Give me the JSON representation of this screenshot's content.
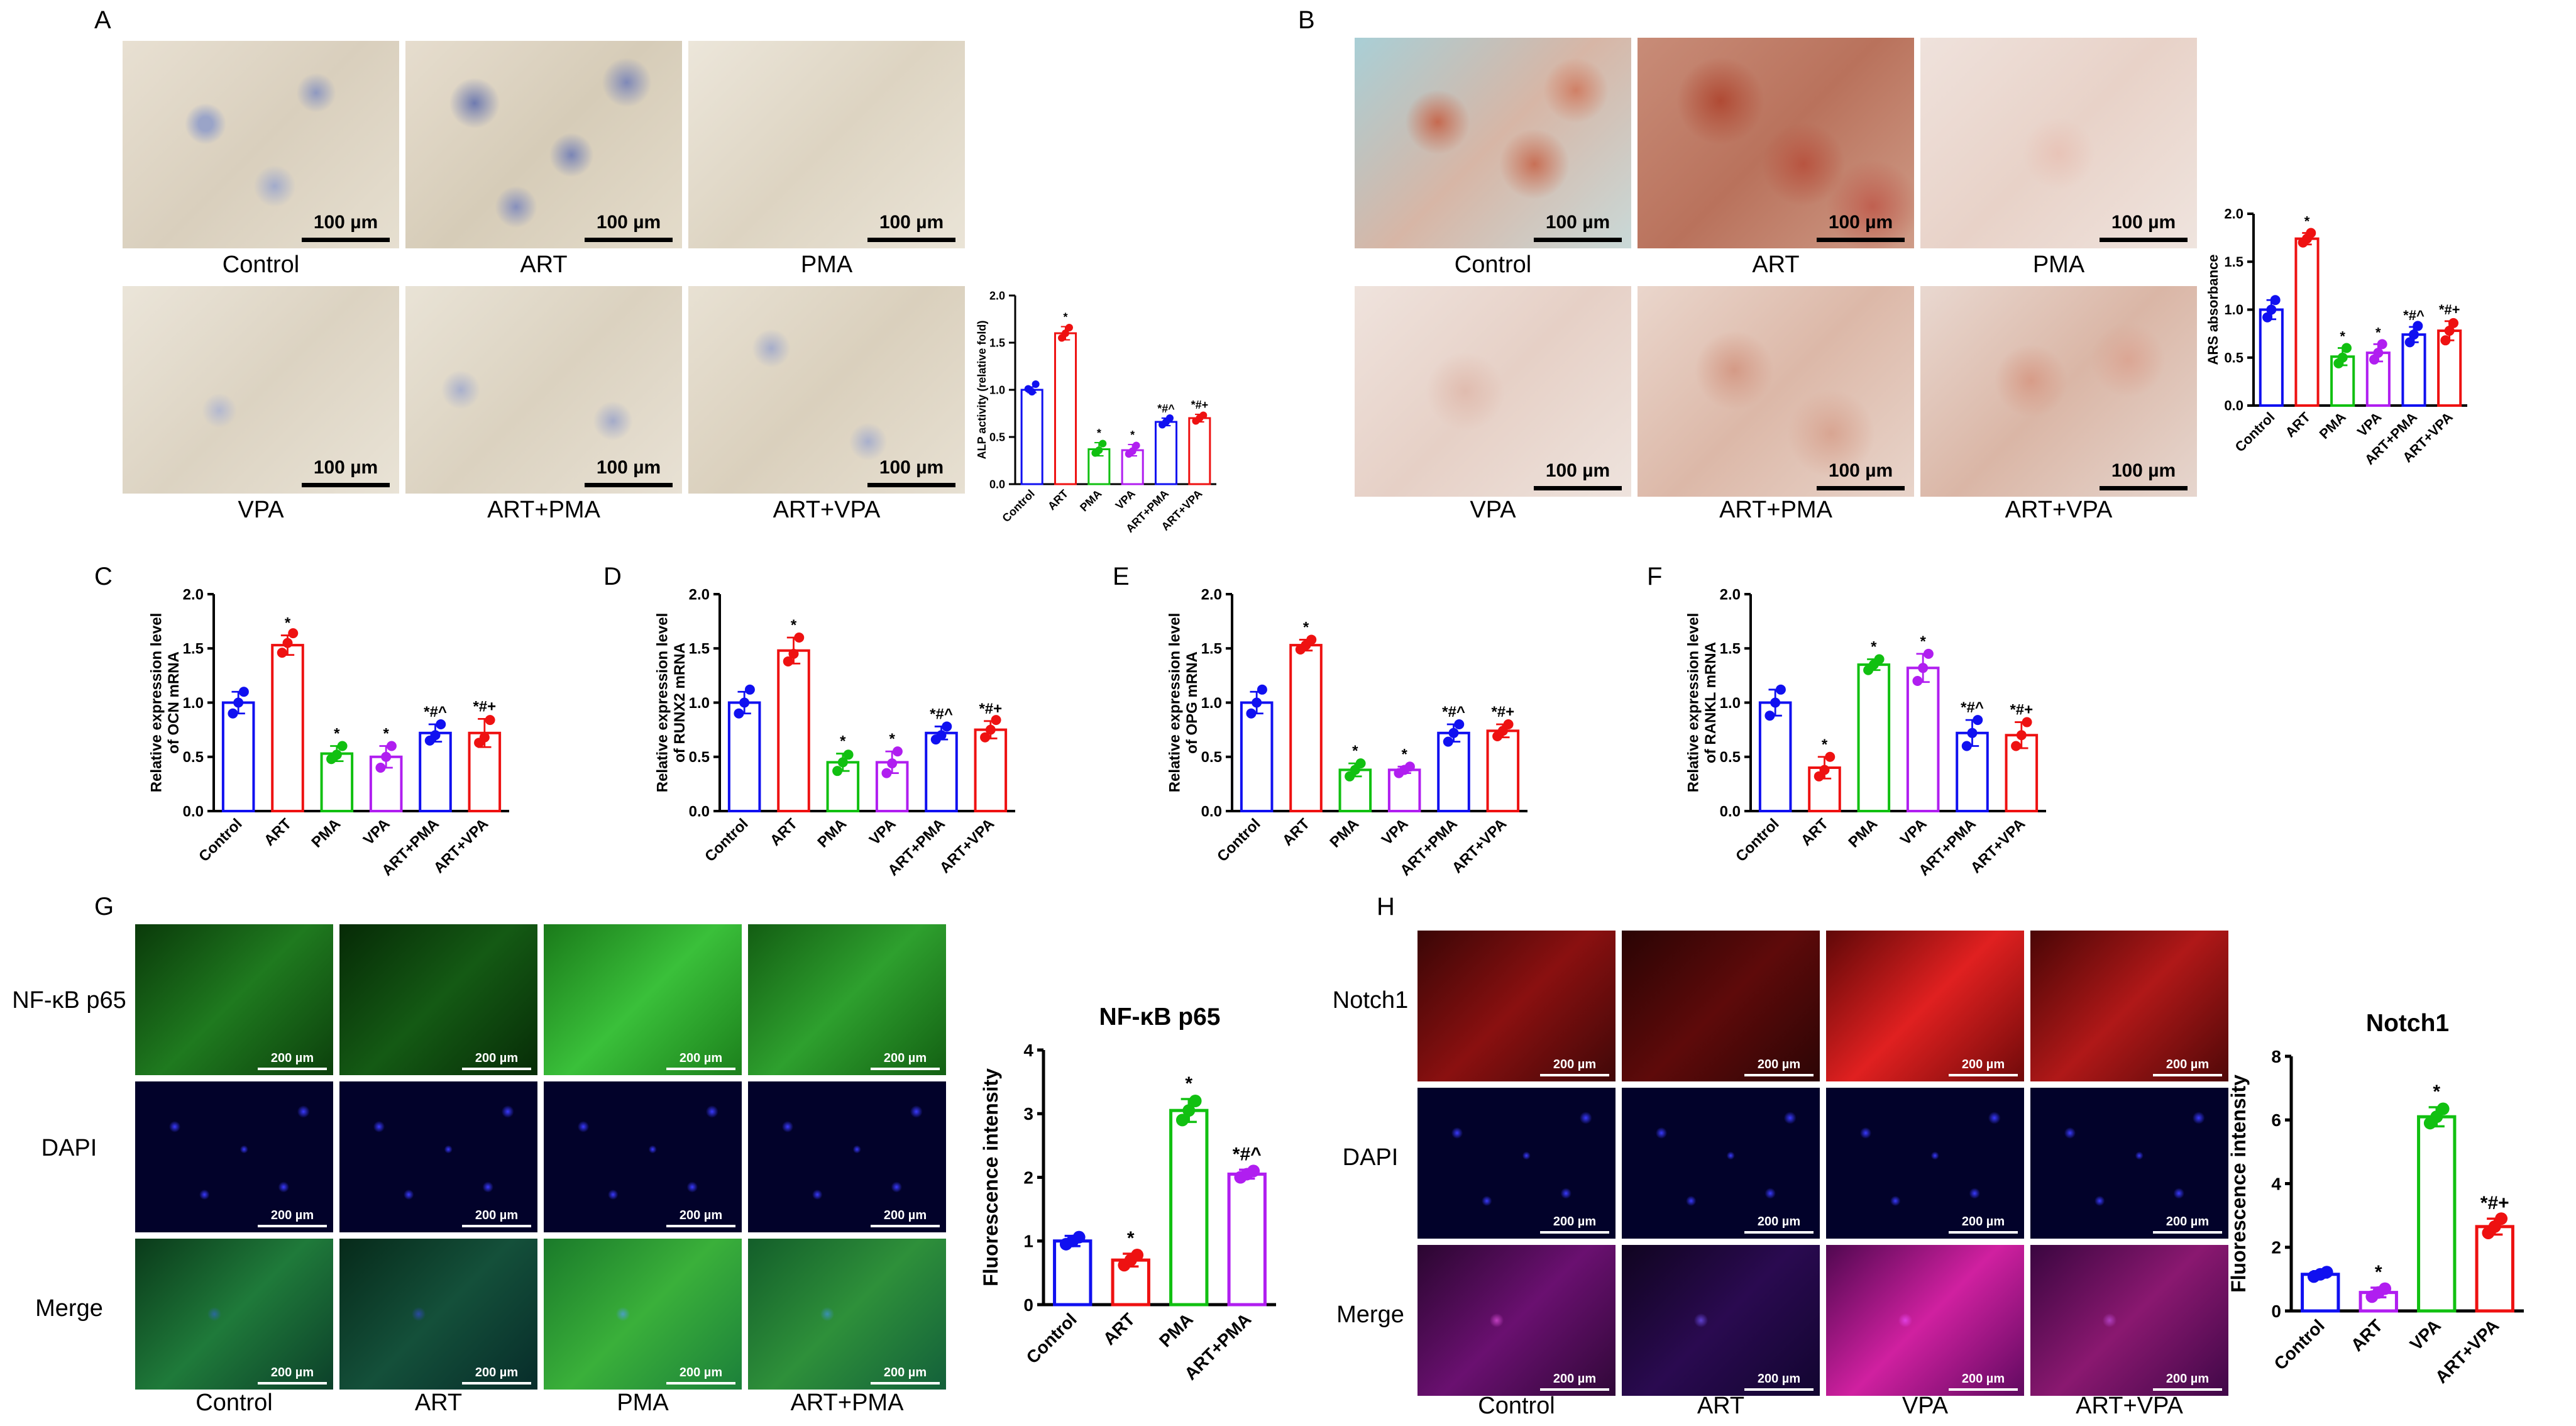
{
  "panels": {
    "A": {
      "letter": "A",
      "captions": [
        "Control",
        "ART",
        "PMA",
        "VPA",
        "ART+PMA",
        "ART+VPA"
      ],
      "scale_bar": "100 µm"
    },
    "B": {
      "letter": "B",
      "captions": [
        "Control",
        "ART",
        "PMA",
        "VPA",
        "ART+PMA",
        "ART+VPA"
      ],
      "scale_bar": "100 µm"
    },
    "C": {
      "letter": "C"
    },
    "D": {
      "letter": "D"
    },
    "E": {
      "letter": "E"
    },
    "F": {
      "letter": "F"
    },
    "G": {
      "letter": "G",
      "row_labels": [
        "NF-κB p65",
        "DAPI",
        "Merge"
      ],
      "col_labels": [
        "Control",
        "ART",
        "PMA",
        "ART+PMA"
      ],
      "scale_bar": "200 µm"
    },
    "H": {
      "letter": "H",
      "row_labels": [
        "Notch1",
        "DAPI",
        "Merge"
      ],
      "col_labels": [
        "Control",
        "ART",
        "VPA",
        "ART+VPA"
      ],
      "scale_bar": "200 µm"
    }
  },
  "colors": {
    "blue": "#1010f0",
    "red": "#ee1111",
    "green": "#11c011",
    "purple": "#b01ef0"
  },
  "chart_data": [
    {
      "id": "A",
      "type": "bar",
      "title": "",
      "xlabel": "",
      "ylabel": "ALP activity (relative fold)",
      "categories": [
        "Control",
        "ART",
        "PMA",
        "VPA",
        "ART+PMA",
        "ART+VPA"
      ],
      "values": [
        1.0,
        1.6,
        0.37,
        0.36,
        0.66,
        0.7
      ],
      "errors": [
        0.03,
        0.07,
        0.07,
        0.06,
        0.04,
        0.04
      ],
      "points": [
        [
          1.01,
          0.98,
          1.06
        ],
        [
          1.55,
          1.6,
          1.66
        ],
        [
          0.33,
          0.36,
          0.43
        ],
        [
          0.32,
          0.35,
          0.41
        ],
        [
          0.63,
          0.66,
          0.7
        ],
        [
          0.67,
          0.7,
          0.73
        ]
      ],
      "annotations": [
        "",
        "*",
        "*",
        "*",
        "*#^",
        "*#+"
      ],
      "colors": [
        "blue",
        "red",
        "green",
        "purple",
        "blue",
        "red"
      ],
      "ylim": [
        0,
        2.0
      ],
      "yticks": [
        "0.0",
        "0.5",
        "1.0",
        "1.5",
        "2.0"
      ]
    },
    {
      "id": "B",
      "type": "bar",
      "title": "",
      "xlabel": "",
      "ylabel": "ARS absorbance",
      "categories": [
        "Control",
        "ART",
        "PMA",
        "VPA",
        "ART+PMA",
        "ART+VPA"
      ],
      "values": [
        1.0,
        1.74,
        0.51,
        0.55,
        0.74,
        0.78
      ],
      "errors": [
        0.1,
        0.06,
        0.09,
        0.09,
        0.08,
        0.1
      ],
      "points": [
        [
          0.92,
          1.0,
          1.1
        ],
        [
          1.7,
          1.74,
          1.8
        ],
        [
          0.44,
          0.5,
          0.6
        ],
        [
          0.48,
          0.55,
          0.64
        ],
        [
          0.66,
          0.74,
          0.83
        ],
        [
          0.68,
          0.78,
          0.86
        ]
      ],
      "annotations": [
        "",
        "*",
        "*",
        "*",
        "*#^",
        "*#+"
      ],
      "colors": [
        "blue",
        "red",
        "green",
        "purple",
        "blue",
        "red"
      ],
      "ylim": [
        0,
        2.0
      ],
      "yticks": [
        "0.0",
        "0.5",
        "1.0",
        "1.5",
        "2.0"
      ]
    },
    {
      "id": "C",
      "type": "bar",
      "title": "",
      "xlabel": "",
      "ylabel": [
        "Relative expression level",
        "of OCN mRNA"
      ],
      "categories": [
        "Control",
        "ART",
        "PMA",
        "VPA",
        "ART+PMA",
        "ART+VPA"
      ],
      "values": [
        1.0,
        1.53,
        0.53,
        0.5,
        0.72,
        0.72
      ],
      "errors": [
        0.1,
        0.09,
        0.07,
        0.1,
        0.08,
        0.13
      ],
      "points": [
        [
          0.9,
          1.0,
          1.1
        ],
        [
          1.46,
          1.55,
          1.64
        ],
        [
          0.48,
          0.52,
          0.6
        ],
        [
          0.4,
          0.5,
          0.6
        ],
        [
          0.65,
          0.7,
          0.8
        ],
        [
          0.63,
          0.68,
          0.84
        ]
      ],
      "annotations": [
        "",
        "*",
        "*",
        "*",
        "*#^",
        "*#+"
      ],
      "colors": [
        "blue",
        "red",
        "green",
        "purple",
        "blue",
        "red"
      ],
      "ylim": [
        0,
        2.0
      ],
      "yticks": [
        "0.0",
        "0.5",
        "1.0",
        "1.5",
        "2.0"
      ]
    },
    {
      "id": "D",
      "type": "bar",
      "title": "",
      "xlabel": "",
      "ylabel": [
        "Relative expression level",
        "of RUNX2 mRNA"
      ],
      "categories": [
        "Control",
        "ART",
        "PMA",
        "VPA",
        "ART+PMA",
        "ART+VPA"
      ],
      "values": [
        1.0,
        1.48,
        0.45,
        0.45,
        0.72,
        0.75
      ],
      "errors": [
        0.1,
        0.12,
        0.08,
        0.1,
        0.06,
        0.08
      ],
      "points": [
        [
          0.9,
          1.0,
          1.12
        ],
        [
          1.38,
          1.45,
          1.6
        ],
        [
          0.37,
          0.45,
          0.52
        ],
        [
          0.35,
          0.44,
          0.55
        ],
        [
          0.66,
          0.7,
          0.78
        ],
        [
          0.68,
          0.75,
          0.84
        ]
      ],
      "annotations": [
        "",
        "*",
        "*",
        "*",
        "*#^",
        "*#+"
      ],
      "colors": [
        "blue",
        "red",
        "green",
        "purple",
        "blue",
        "red"
      ],
      "ylim": [
        0,
        2.0
      ],
      "yticks": [
        "0.0",
        "0.5",
        "1.0",
        "1.5",
        "2.0"
      ]
    },
    {
      "id": "E",
      "type": "bar",
      "title": "",
      "xlabel": "",
      "ylabel": [
        "Relative expression level",
        "of OPG mRNA"
      ],
      "categories": [
        "Control",
        "ART",
        "PMA",
        "VPA",
        "ART+PMA",
        "ART+VPA"
      ],
      "values": [
        1.0,
        1.53,
        0.38,
        0.38,
        0.72,
        0.74
      ],
      "errors": [
        0.1,
        0.05,
        0.06,
        0.03,
        0.08,
        0.06
      ],
      "points": [
        [
          0.9,
          1.0,
          1.12
        ],
        [
          1.49,
          1.53,
          1.58
        ],
        [
          0.32,
          0.38,
          0.44
        ],
        [
          0.35,
          0.38,
          0.41
        ],
        [
          0.64,
          0.72,
          0.8
        ],
        [
          0.69,
          0.74,
          0.8
        ]
      ],
      "annotations": [
        "",
        "*",
        "*",
        "*",
        "*#^",
        "*#+"
      ],
      "colors": [
        "blue",
        "red",
        "green",
        "purple",
        "blue",
        "red"
      ],
      "ylim": [
        0,
        2.0
      ],
      "yticks": [
        "0.0",
        "0.5",
        "1.0",
        "1.5",
        "2.0"
      ]
    },
    {
      "id": "F",
      "type": "bar",
      "title": "",
      "xlabel": "",
      "ylabel": [
        "Relative expression level",
        "of RANKL mRNA"
      ],
      "categories": [
        "Control",
        "ART",
        "PMA",
        "VPA",
        "ART+PMA",
        "ART+VPA"
      ],
      "values": [
        1.0,
        0.4,
        1.35,
        1.32,
        0.72,
        0.7
      ],
      "errors": [
        0.12,
        0.1,
        0.05,
        0.13,
        0.12,
        0.12
      ],
      "points": [
        [
          0.88,
          1.0,
          1.12
        ],
        [
          0.32,
          0.38,
          0.5
        ],
        [
          1.3,
          1.35,
          1.4
        ],
        [
          1.2,
          1.32,
          1.45
        ],
        [
          0.6,
          0.72,
          0.84
        ],
        [
          0.6,
          0.7,
          0.82
        ]
      ],
      "annotations": [
        "",
        "*",
        "*",
        "*",
        "*#^",
        "*#+"
      ],
      "colors": [
        "blue",
        "red",
        "green",
        "purple",
        "blue",
        "red"
      ],
      "ylim": [
        0,
        2.0
      ],
      "yticks": [
        "0.0",
        "0.5",
        "1.0",
        "1.5",
        "2.0"
      ]
    },
    {
      "id": "G",
      "type": "bar",
      "title": "NF-κB p65",
      "xlabel": "",
      "ylabel": "Fluorescence intensity",
      "categories": [
        "Control",
        "ART",
        "PMA",
        "ART+PMA"
      ],
      "values": [
        1.0,
        0.7,
        3.05,
        2.05
      ],
      "errors": [
        0.08,
        0.1,
        0.18,
        0.07
      ],
      "points": [
        [
          0.95,
          1.0,
          1.06
        ],
        [
          0.62,
          0.7,
          0.78
        ],
        [
          2.9,
          3.05,
          3.2
        ],
        [
          2.0,
          2.05,
          2.1
        ]
      ],
      "annotations": [
        "",
        "*",
        "*",
        "*#^"
      ],
      "colors": [
        "blue",
        "red",
        "green",
        "purple"
      ],
      "ylim": [
        0,
        4
      ],
      "yticks": [
        "0",
        "1",
        "2",
        "3",
        "4"
      ]
    },
    {
      "id": "H",
      "type": "bar",
      "title": "Notch1",
      "xlabel": "",
      "ylabel": "Fluorescence intensity",
      "categories": [
        "Control",
        "ART",
        "VPA",
        "ART+VPA"
      ],
      "values": [
        1.15,
        0.58,
        6.1,
        2.65
      ],
      "errors": [
        0.1,
        0.15,
        0.3,
        0.25
      ],
      "points": [
        [
          1.08,
          1.15,
          1.22
        ],
        [
          0.45,
          0.58,
          0.7
        ],
        [
          5.9,
          6.1,
          6.35
        ],
        [
          2.45,
          2.65,
          2.9
        ]
      ],
      "annotations": [
        "",
        "*",
        "*",
        "*#+"
      ],
      "colors": [
        "blue",
        "purple",
        "green",
        "red"
      ],
      "ylim": [
        0,
        8
      ],
      "yticks": [
        "0",
        "2",
        "4",
        "6",
        "8"
      ]
    }
  ]
}
